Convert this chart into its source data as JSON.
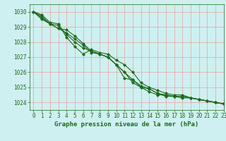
{
  "title": "Graphe pression niveau de la mer (hPa)",
  "bg_color": "#cff0f0",
  "grid_color": "#e8a0a0",
  "line_color": "#1a6b1a",
  "xlim": [
    -0.5,
    23
  ],
  "ylim": [
    1023.5,
    1030.5
  ],
  "yticks": [
    1024,
    1025,
    1026,
    1027,
    1028,
    1029,
    1030
  ],
  "xticks": [
    0,
    1,
    2,
    3,
    4,
    5,
    6,
    7,
    8,
    9,
    10,
    11,
    12,
    13,
    14,
    15,
    16,
    17,
    18,
    19,
    20,
    21,
    22,
    23
  ],
  "lines": [
    [
      1030.0,
      1029.8,
      1029.3,
      1029.2,
      1028.3,
      1027.7,
      1027.2,
      1027.5,
      1027.3,
      1027.2,
      1026.8,
      1026.5,
      1026.0,
      1025.3,
      1025.0,
      1024.8,
      1024.6,
      1024.5,
      1024.5,
      1024.3,
      1024.2,
      1024.1,
      1024.0,
      1023.9
    ],
    [
      1030.0,
      1029.7,
      1029.2,
      1029.1,
      1028.5,
      1028.0,
      1027.6,
      1027.4,
      1027.2,
      1027.0,
      1026.5,
      1026.0,
      1025.3,
      1025.0,
      1024.9,
      1024.6,
      1024.4,
      1024.4,
      1024.3,
      1024.3,
      1024.2,
      1024.1,
      1024.0,
      1023.9
    ],
    [
      1030.0,
      1029.6,
      1029.2,
      1028.9,
      1028.8,
      1028.4,
      1027.9,
      1027.4,
      1027.2,
      1027.0,
      1026.5,
      1025.6,
      1025.5,
      1025.1,
      1024.9,
      1024.6,
      1024.5,
      1024.4,
      1024.4,
      1024.3,
      1024.2,
      1024.1,
      1024.0,
      1023.9
    ],
    [
      1030.0,
      1029.5,
      1029.2,
      1028.9,
      1028.6,
      1028.2,
      1027.8,
      1027.3,
      1027.2,
      1027.0,
      1026.5,
      1026.0,
      1025.5,
      1025.0,
      1024.7,
      1024.5,
      1024.5,
      1024.4,
      1024.4,
      1024.3,
      1024.2,
      1024.1,
      1024.0,
      1023.9
    ]
  ],
  "marker": "D",
  "markersize": 2,
  "linewidth": 0.8,
  "label_fontsize": 6.5,
  "tick_fontsize": 5.5
}
